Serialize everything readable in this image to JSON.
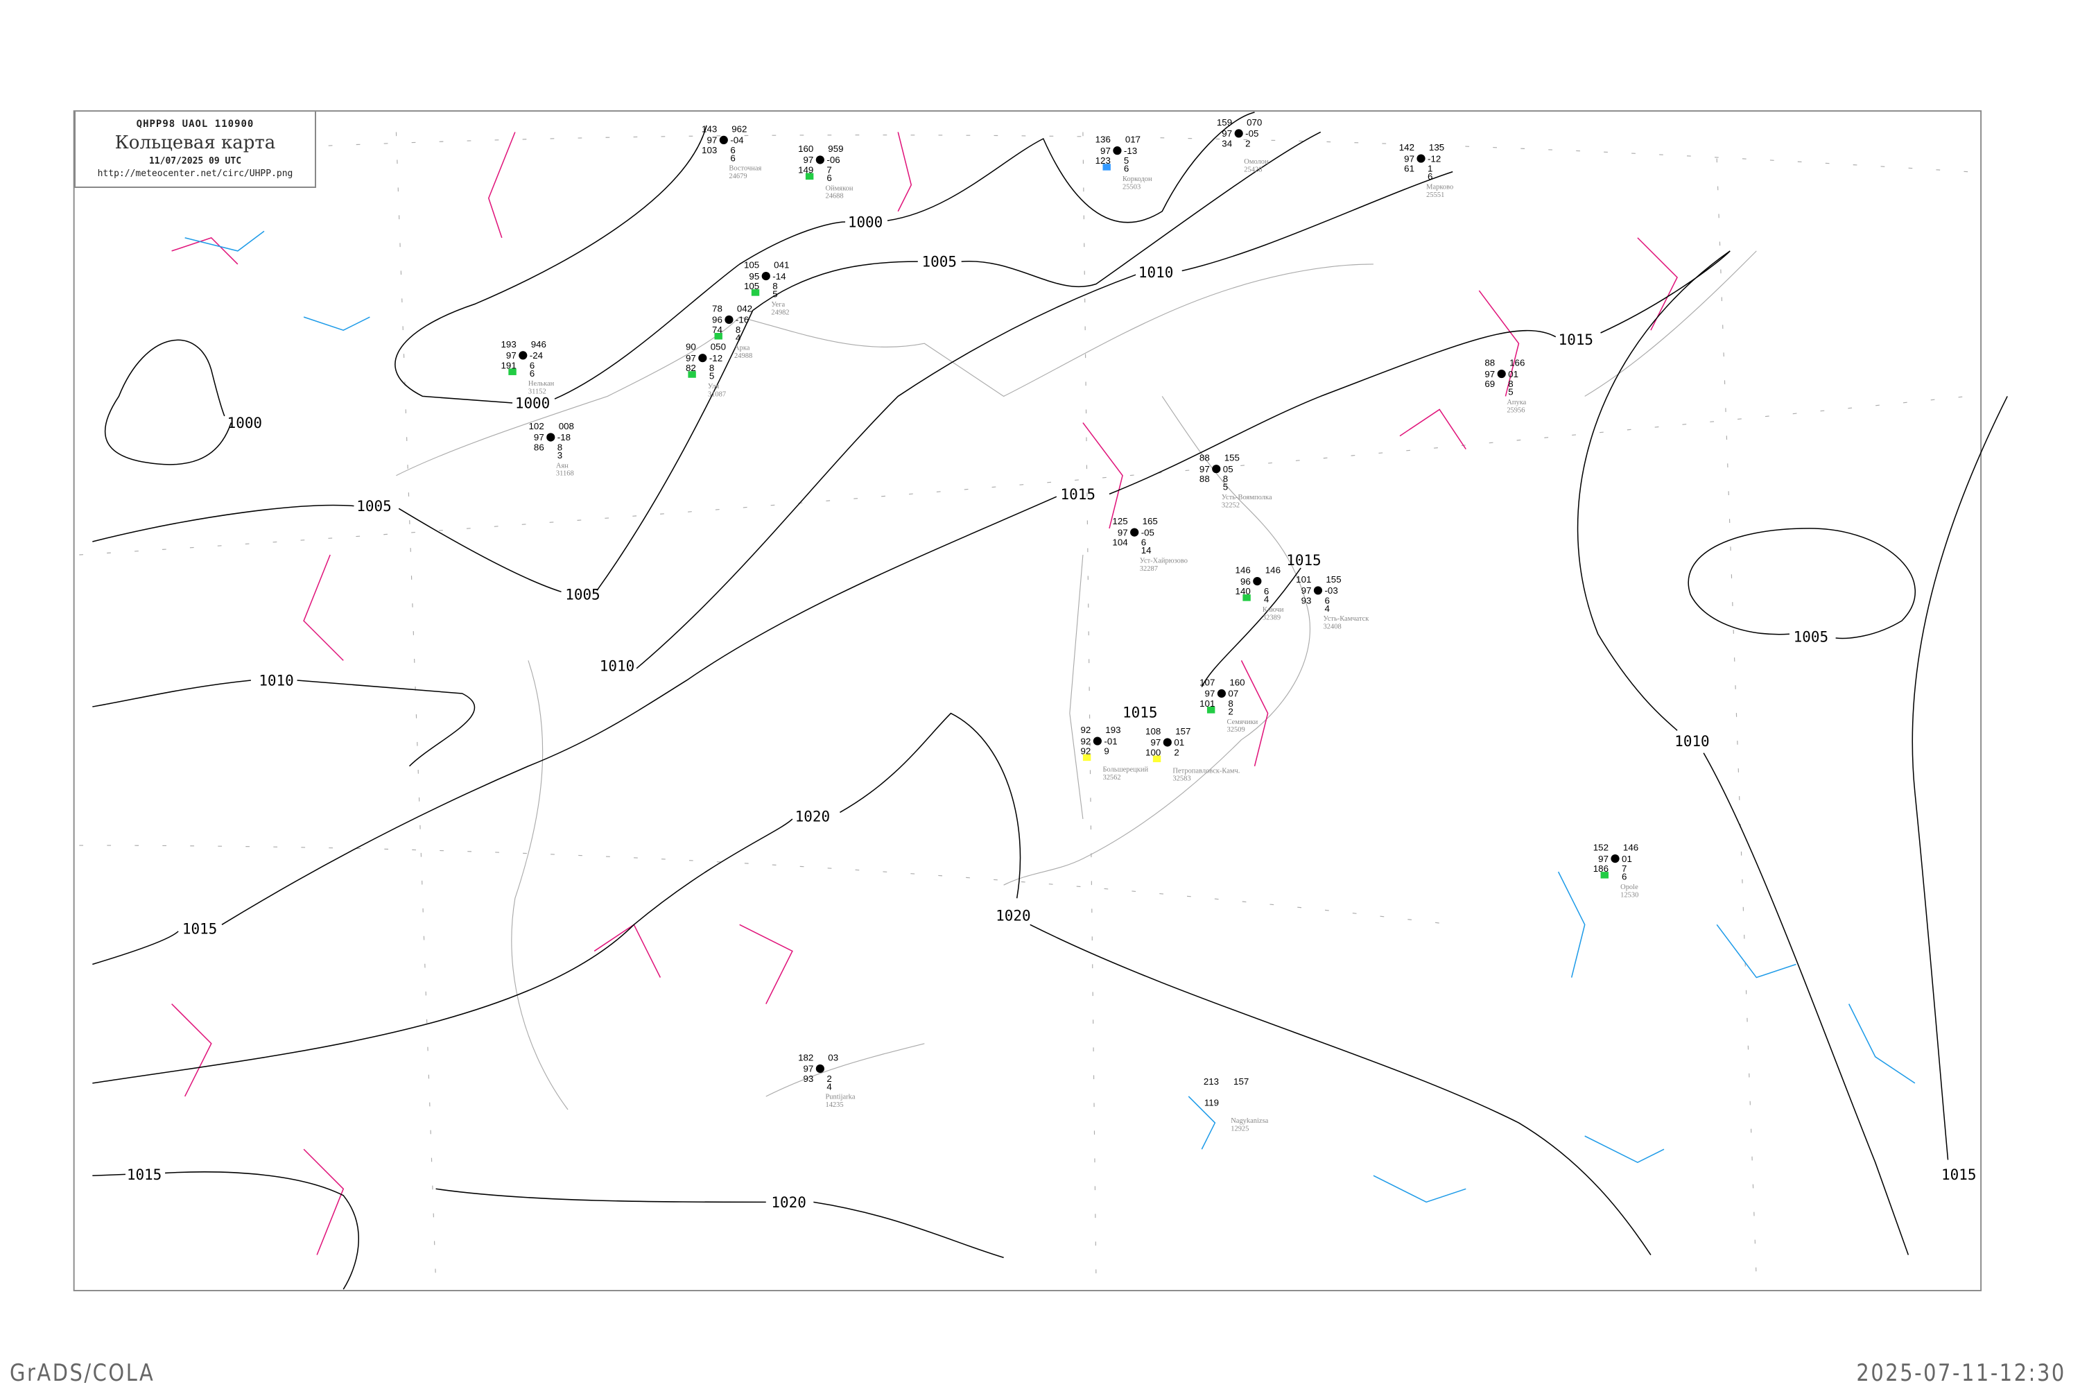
{
  "header": {
    "code_line": "QHPP98  UAOL  110900",
    "title": "Кольцевая карта",
    "datetime": "11/07/2025 09 UTC",
    "url": "http://meteocenter.net/circ/UHPP.png"
  },
  "footer": {
    "left": "GrADS/COLA",
    "right": "2025-07-11-12:30"
  },
  "colors": {
    "isobar": "#000000",
    "pressure_rise": "#e0147a",
    "pressure_fall": "#1e9be8",
    "coastline": "#aaaaaa",
    "marker_green": "#22cc44",
    "marker_yellow": "#ffff33",
    "marker_blue": "#3399ff",
    "marker_red": "#e0143c"
  },
  "isobar_labels": [
    "1000",
    "1000",
    "1000",
    "1005",
    "1005",
    "1005",
    "1005",
    "1010",
    "1010",
    "1010",
    "1010",
    "1015",
    "1015",
    "1015",
    "1015",
    "1015",
    "1015",
    "1015",
    "1020",
    "1020",
    "1020"
  ],
  "stations": [
    {
      "name": "Коркодон",
      "id": "25503",
      "tl": "136",
      "tr": "017",
      "ml": "97",
      "mr": "-13",
      "bl": "123",
      "b1": "5",
      "b2": "6",
      "marker": "blue"
    },
    {
      "name": "Омолон",
      "id": "25428",
      "tl": "159",
      "tr": "070",
      "ml": "97",
      "mr": "-05",
      "bl": "34",
      "b1": "2",
      "b2": "",
      "marker": ""
    },
    {
      "name": "Марково",
      "id": "25551",
      "tl": "142",
      "tr": "135",
      "ml": "97",
      "mr": "-12",
      "bl": "61",
      "b1": "1",
      "b2": "6",
      "marker": ""
    },
    {
      "name": "Апука",
      "id": "25956",
      "tl": "88",
      "tr": "166",
      "ml": "97",
      "mr": "01",
      "bl": "69",
      "b1": "8",
      "b2": "5",
      "marker": ""
    },
    {
      "name": "Восточная",
      "id": "24679",
      "tl": "143",
      "tr": "962",
      "ml": "97",
      "mr": "-04",
      "bl": "103",
      "b1": "6",
      "b2": "6",
      "marker": ""
    },
    {
      "name": "Оймякон",
      "id": "24688",
      "tl": "160",
      "tr": "959",
      "ml": "97",
      "mr": "-06",
      "bl": "149",
      "b1": "7",
      "b2": "6",
      "marker": "green"
    },
    {
      "name": "Уега",
      "id": "24982",
      "tl": "105",
      "tr": "041",
      "ml": "95",
      "mr": "-14",
      "bl": "105",
      "b1": "8",
      "b2": "5",
      "marker": "green"
    },
    {
      "name": "Арка",
      "id": "24988",
      "tl": "78",
      "tr": "042",
      "ml": "96",
      "mr": "-16",
      "bl": "74",
      "b1": "8",
      "b2": "4",
      "marker": "green"
    },
    {
      "name": "Нелькан",
      "id": "31152",
      "tl": "193",
      "tr": "946",
      "ml": "97",
      "mr": "-24",
      "bl": "191",
      "b1": "6",
      "b2": "6",
      "marker": "green"
    },
    {
      "name": "Уля",
      "id": "31087",
      "tl": "90",
      "tr": "050",
      "ml": "97",
      "mr": "-12",
      "bl": "82",
      "b1": "8",
      "b2": "5",
      "marker": "green"
    },
    {
      "name": "Аян",
      "id": "31168",
      "tl": "102",
      "tr": "008",
      "ml": "97",
      "mr": "-18",
      "bl": "86",
      "b1": "8",
      "b2": "3",
      "marker": ""
    },
    {
      "name": "Усть-Воямполка",
      "id": "32252",
      "tl": "88",
      "tr": "155",
      "ml": "97",
      "mr": "05",
      "bl": "88",
      "b1": "8",
      "b2": "5",
      "marker": ""
    },
    {
      "name": "Уст-Хайрюзово",
      "id": "32287",
      "tl": "125",
      "tr": "165",
      "ml": "97",
      "mr": "-05",
      "bl": "104",
      "b1": "6",
      "b2": "14",
      "marker": ""
    },
    {
      "name": "Ключи",
      "id": "32389",
      "tl": "146",
      "tr": "146",
      "ml": "96",
      "mr": "",
      "bl": "140",
      "b1": "6",
      "b2": "4",
      "marker": "green"
    },
    {
      "name": "Усть-Камчатск",
      "id": "32408",
      "tl": "101",
      "tr": "155",
      "ml": "97",
      "mr": "-03",
      "bl": "93",
      "b1": "6",
      "b2": "4",
      "marker": ""
    },
    {
      "name": "Семячики",
      "id": "32509",
      "tl": "107",
      "tr": "160",
      "ml": "97",
      "mr": "07",
      "bl": "101",
      "b1": "8",
      "b2": "2",
      "marker": "green"
    },
    {
      "name": "Большерецкий",
      "id": "32562",
      "tl": "92",
      "tr": "193",
      "ml": "92",
      "mr": "-01",
      "bl": "92",
      "b1": "9",
      "b2": "",
      "marker": "yellow"
    },
    {
      "name": "Петропавловск-Камч.",
      "id": "32583",
      "tl": "108",
      "tr": "157",
      "ml": "97",
      "mr": "01",
      "bl": "100",
      "b1": "2",
      "b2": "",
      "marker": "yellow"
    },
    {
      "name": "Opole",
      "id": "12530",
      "tl": "152",
      "tr": "146",
      "ml": "97",
      "mr": "01",
      "bl": "186",
      "b1": "7",
      "b2": "6",
      "marker": "green"
    },
    {
      "name": "Puntijarka",
      "id": "14235",
      "tl": "182",
      "tr": "03",
      "ml": "97",
      "mr": "",
      "bl": "93",
      "b1": "2",
      "b2": "4",
      "marker": ""
    },
    {
      "name": "Nagykanizsa",
      "id": "12925",
      "tl": "213",
      "tr": "157",
      "ml": "",
      "mr": "",
      "bl": "119",
      "b1": "",
      "b2": "",
      "marker": ""
    }
  ]
}
